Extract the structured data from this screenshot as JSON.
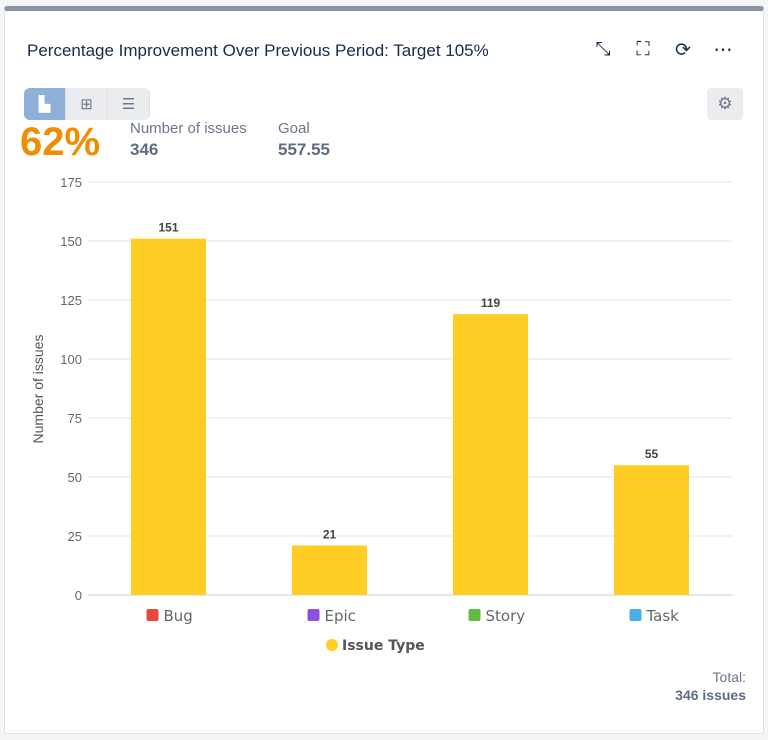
{
  "header": {
    "title": "Percentage Improvement Over Previous Period: Target 105%",
    "icons": [
      "minimize-icon",
      "fullscreen-icon",
      "refresh-icon",
      "more-icon"
    ]
  },
  "views": [
    "chart-view-icon",
    "table-view-icon",
    "list-view-icon"
  ],
  "summary": {
    "percent": "62%",
    "issues_label": "Number of issues",
    "issues_value": "346",
    "goal_label": "Goal",
    "goal_value": "557.55"
  },
  "colors": {
    "bar": "#ffcd24",
    "percent": "#f28c00"
  },
  "chart_data": {
    "type": "bar",
    "categories": [
      "Bug",
      "Epic",
      "Story",
      "Task"
    ],
    "category_icon_colors": [
      "#e5493a",
      "#904ee2",
      "#63ba3c",
      "#4bade8"
    ],
    "series": [
      {
        "name": "Issue Type",
        "values": [
          151,
          21,
          119,
          55
        ]
      }
    ],
    "ylabel": "Number of issues",
    "xlabel": "",
    "ylim": [
      0,
      175
    ],
    "yticks": [
      0,
      25,
      50,
      75,
      100,
      125,
      150,
      175
    ],
    "grid": true,
    "legend": "bottom"
  },
  "total": {
    "label": "Total:",
    "value": "346 issues"
  }
}
